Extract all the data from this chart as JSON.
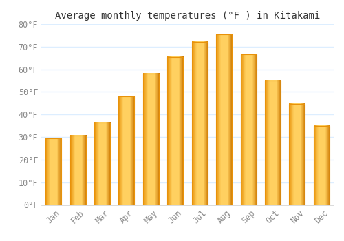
{
  "title": "Average monthly temperatures (°F ) in Kitakami",
  "months": [
    "Jan",
    "Feb",
    "Mar",
    "Apr",
    "May",
    "Jun",
    "Jul",
    "Aug",
    "Sep",
    "Oct",
    "Nov",
    "Dec"
  ],
  "values": [
    29.5,
    30.5,
    36.5,
    48,
    58,
    65.5,
    72,
    75.5,
    66.5,
    55,
    44.5,
    35
  ],
  "bar_color_main": "#FFC020",
  "bar_color_edge": "#E8920A",
  "background_color": "#FFFFFF",
  "grid_color": "#DDEEFF",
  "ylim": [
    0,
    80
  ],
  "yticks": [
    0,
    10,
    20,
    30,
    40,
    50,
    60,
    70,
    80
  ],
  "title_fontsize": 10,
  "tick_fontsize": 8.5,
  "font_family": "monospace",
  "bar_width": 0.65
}
